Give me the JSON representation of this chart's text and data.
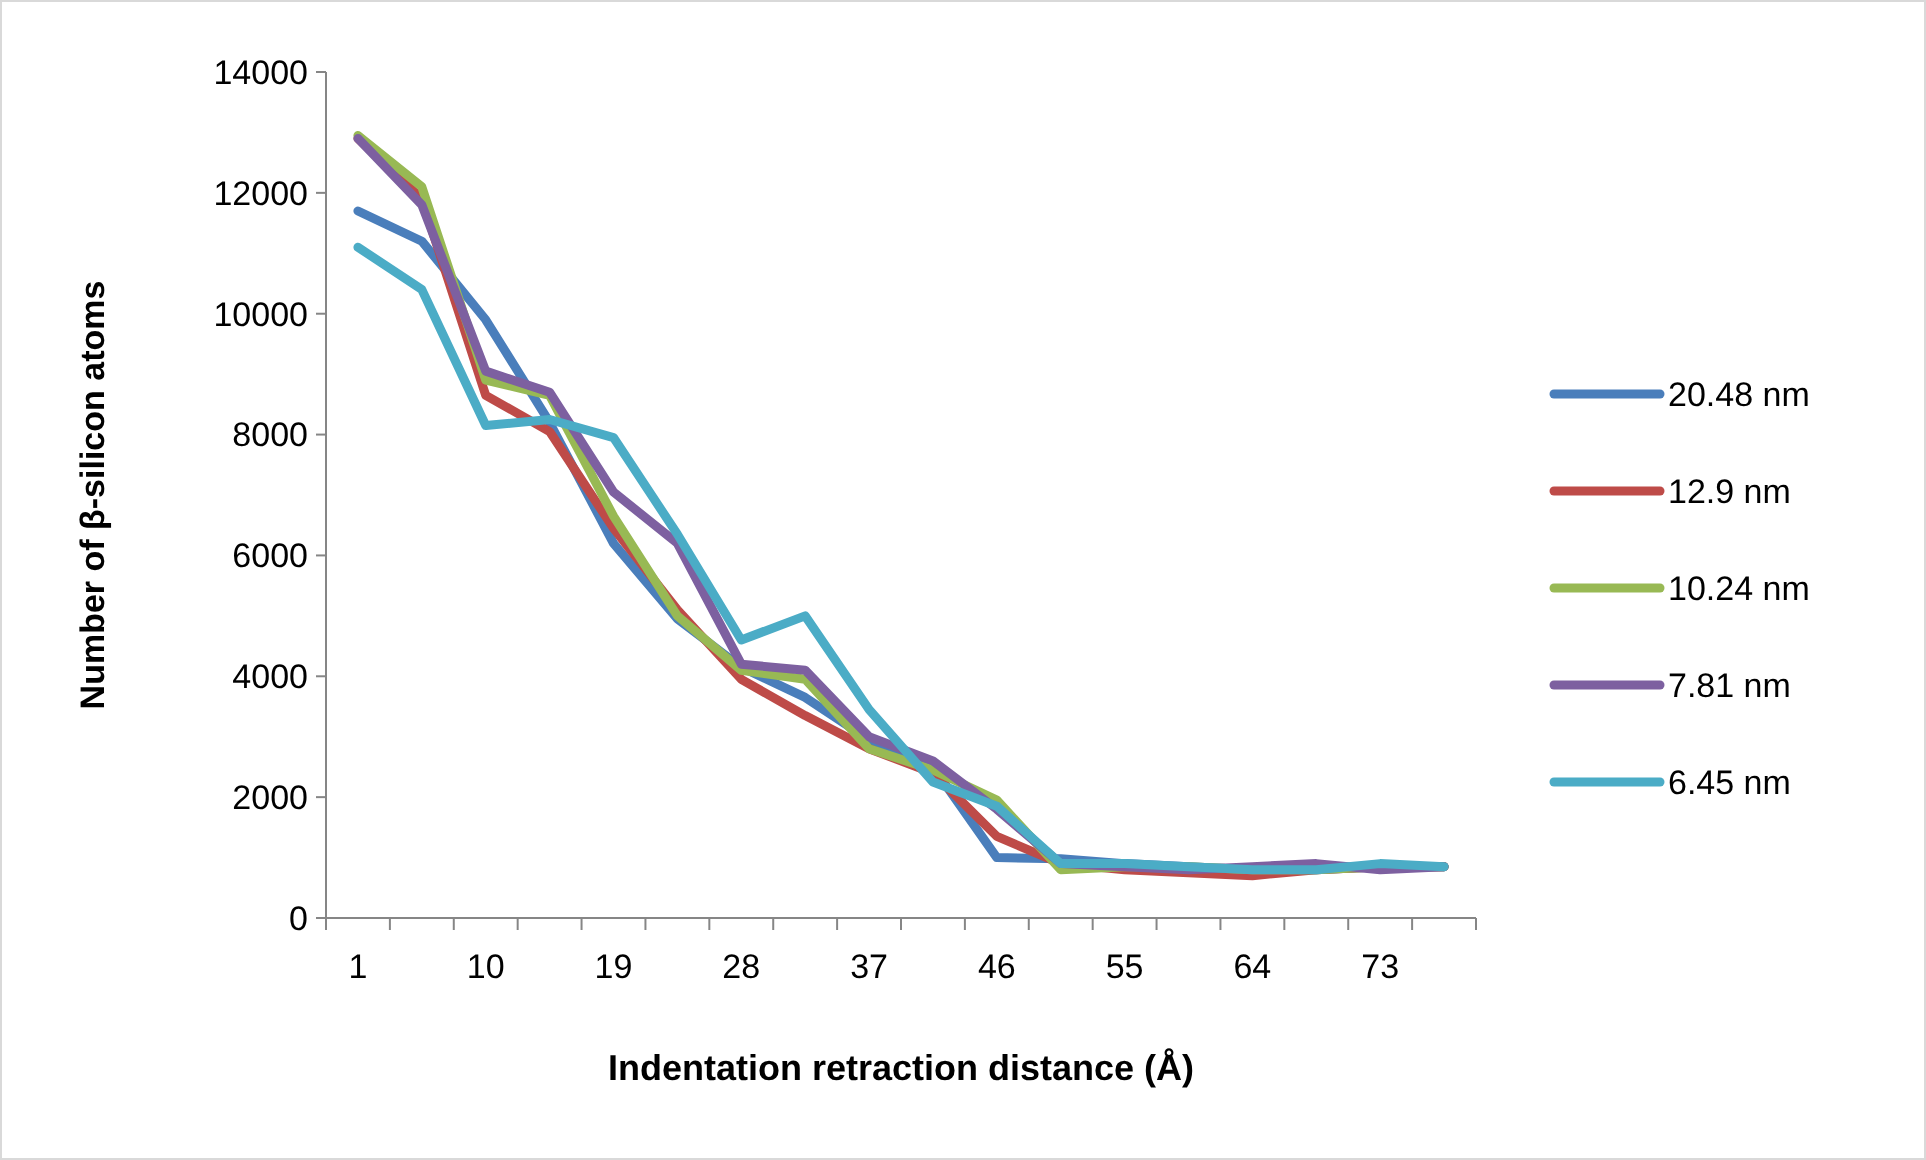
{
  "chart_data": {
    "type": "line",
    "xlabel": "Indentation retraction distance (Å)",
    "ylabel": "Number of β-silicon atoms",
    "categories": [
      "1",
      null,
      "10",
      null,
      "19",
      null,
      "28",
      null,
      "37",
      null,
      "46",
      null,
      "55",
      null,
      "64",
      null,
      "73",
      null
    ],
    "series": [
      {
        "name": "20.48 nm",
        "color": "#4a7ebb",
        "values": [
          11700,
          11200,
          9900,
          8200,
          6200,
          4950,
          4150,
          3650,
          2950,
          2500,
          1000,
          980,
          900,
          850,
          800,
          800,
          850,
          850
        ]
      },
      {
        "name": "12.9 nm",
        "color": "#be4b48",
        "values": [
          12900,
          11900,
          8650,
          8050,
          6450,
          5100,
          3950,
          3350,
          2800,
          2400,
          1350,
          900,
          800,
          750,
          700,
          800,
          850,
          850
        ]
      },
      {
        "name": "10.24 nm",
        "color": "#98b954",
        "values": [
          12950,
          12100,
          8900,
          8650,
          6650,
          5000,
          4100,
          3950,
          2800,
          2450,
          1950,
          800,
          850,
          850,
          800,
          800,
          850,
          850
        ]
      },
      {
        "name": "7.81 nm",
        "color": "#7d60a0",
        "values": [
          12900,
          11800,
          9050,
          8700,
          7050,
          6200,
          4200,
          4100,
          3000,
          2600,
          1800,
          900,
          850,
          800,
          850,
          900,
          800,
          850
        ]
      },
      {
        "name": "6.45 nm",
        "color": "#4bacc6",
        "values": [
          11100,
          10400,
          8150,
          8250,
          7950,
          6350,
          4600,
          5000,
          3450,
          2250,
          1850,
          900,
          900,
          850,
          800,
          800,
          900,
          850
        ]
      }
    ],
    "ylim": [
      0,
      14000
    ],
    "yticks": [
      0,
      2000,
      4000,
      6000,
      8000,
      10000,
      12000,
      14000
    ],
    "grid": false,
    "legend": "right",
    "line_style": "solid",
    "marker": "none"
  }
}
